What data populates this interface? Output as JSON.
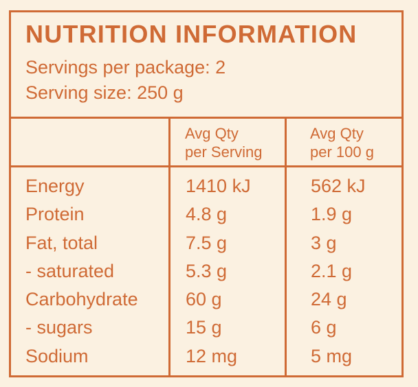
{
  "panel": {
    "title": "NUTRITION INFORMATION",
    "servings_per_package": "Servings per package: 2",
    "serving_size": "Serving size: 250 g",
    "text_color": "#cf6a35",
    "background_color": "#fbf1e1"
  },
  "table": {
    "headers": [
      "",
      [
        "Avg Qty",
        "per Serving"
      ],
      [
        "Avg Qty",
        "per 100 g"
      ]
    ],
    "rows": [
      {
        "name": "Energy",
        "per_serving": "1410 kJ",
        "per_100g": "562 kJ"
      },
      {
        "name": "Protein",
        "per_serving": "4.8 g",
        "per_100g": "1.9 g"
      },
      {
        "name": "Fat, total",
        "per_serving": "7.5 g",
        "per_100g": "3 g"
      },
      {
        "name": "- saturated",
        "per_serving": "5.3 g",
        "per_100g": "2.1 g"
      },
      {
        "name": "Carbohydrate",
        "per_serving": "60 g",
        "per_100g": "24 g"
      },
      {
        "name": "- sugars",
        "per_serving": "15 g",
        "per_100g": "6 g"
      },
      {
        "name": "Sodium",
        "per_serving": "12 mg",
        "per_100g": "5 mg"
      }
    ]
  }
}
